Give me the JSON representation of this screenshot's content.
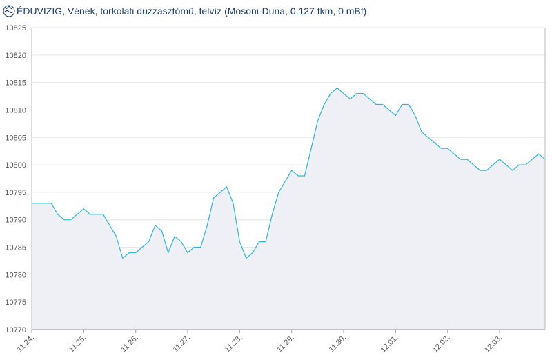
{
  "chart_data": {
    "type": "area",
    "title": "ÉDUVIZIG, Vének, torkolati duzzasztómű, felvíz (Mosoni-Duna, 0.127 fkm, 0 mBf)",
    "categories": [
      "11.24.",
      null,
      null,
      null,
      null,
      null,
      null,
      null,
      "11.25.",
      null,
      null,
      null,
      null,
      null,
      null,
      null,
      "11.26.",
      null,
      null,
      null,
      null,
      null,
      null,
      null,
      "11.27.",
      null,
      null,
      null,
      null,
      null,
      null,
      null,
      "11.28.",
      null,
      null,
      null,
      null,
      null,
      null,
      null,
      "11.29.",
      null,
      null,
      null,
      null,
      null,
      null,
      null,
      "11.30.",
      null,
      null,
      null,
      null,
      null,
      null,
      null,
      "12.01.",
      null,
      null,
      null,
      null,
      null,
      null,
      null,
      "12.02.",
      null,
      null,
      null,
      null,
      null,
      null,
      null,
      "12.03.",
      null,
      null,
      null,
      null,
      null,
      null,
      null
    ],
    "values": [
      10793,
      10793,
      10793,
      10793,
      10791,
      10790,
      10790,
      10791,
      10792,
      10791,
      10791,
      10791,
      10789,
      10787,
      10783,
      10784,
      10784,
      10785,
      10786,
      10789,
      10788,
      10784,
      10787,
      10786,
      10784,
      10785,
      10785,
      10789,
      10794,
      10795,
      10796,
      10793,
      10786,
      10783,
      10784,
      10786,
      10786,
      10791,
      10795,
      10797,
      10799,
      10798,
      10798,
      10803,
      10808,
      10811,
      10813,
      10814,
      10813,
      10812,
      10813,
      10813,
      10812,
      10811,
      10811,
      10810,
      10809,
      10811,
      10811,
      10809,
      10806,
      10805,
      10804,
      10803,
      10803,
      10802,
      10801,
      10801,
      10800,
      10799,
      10799,
      10800,
      10801,
      10800,
      10799,
      10800,
      10800,
      10801,
      10802,
      10801
    ],
    "color": "#2bb6d8",
    "fill": "#eef0f5",
    "ylim": [
      10770,
      10825
    ],
    "yticks": [
      10770,
      10775,
      10780,
      10785,
      10790,
      10795,
      10800,
      10805,
      10810,
      10815,
      10820,
      10825
    ],
    "grid": true
  }
}
